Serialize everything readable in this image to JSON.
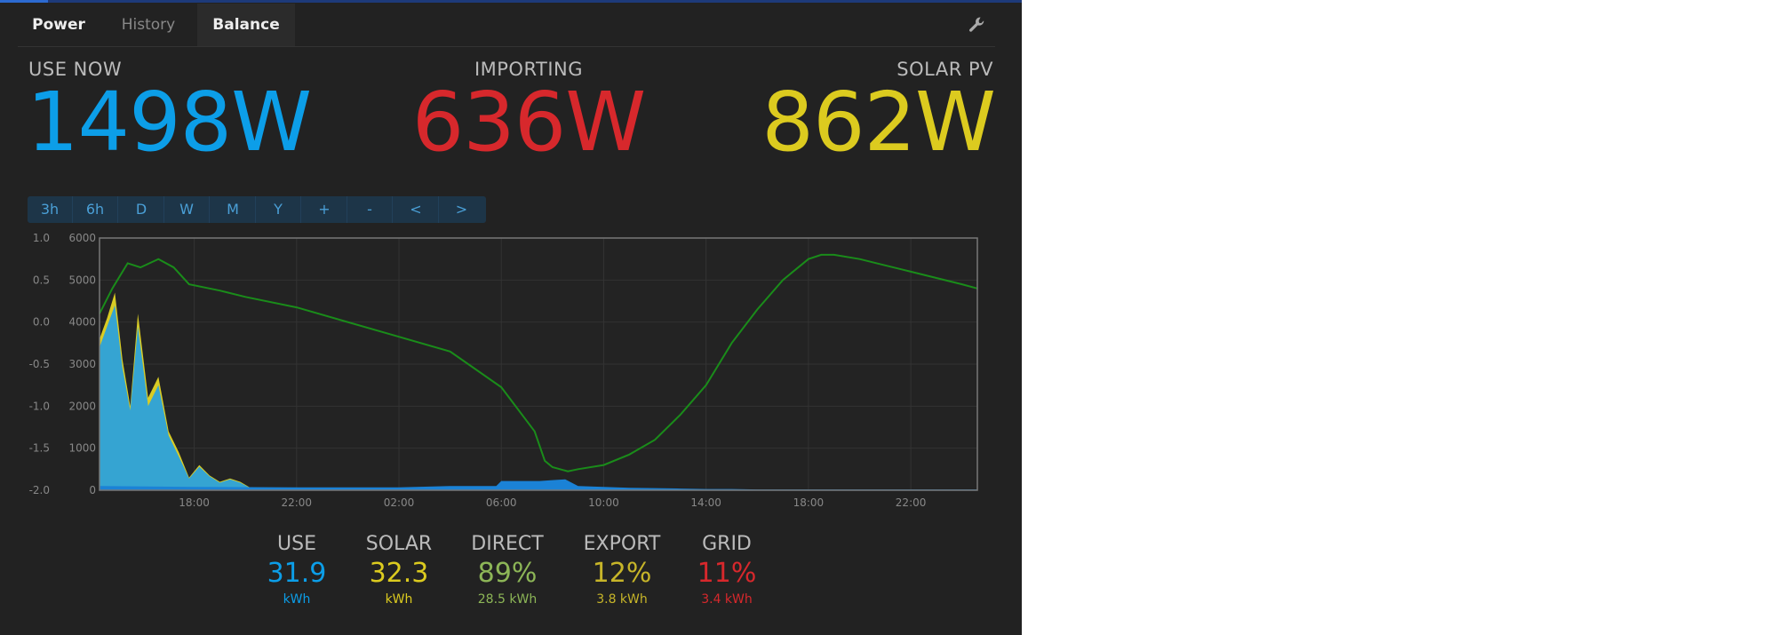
{
  "nav": {
    "tabs": [
      {
        "label": "Power"
      },
      {
        "label": "History"
      },
      {
        "label": "Balance"
      }
    ],
    "settings_icon": "wrench-icon"
  },
  "headline": {
    "use_now": {
      "label": "USE NOW",
      "value": "1498W"
    },
    "importing": {
      "label": "IMPORTING",
      "value": "636W"
    },
    "solar_pv": {
      "label": "SOLAR PV",
      "value": "862W"
    }
  },
  "time_buttons": [
    "3h",
    "6h",
    "D",
    "W",
    "M",
    "Y",
    "+",
    "-",
    "<",
    ">"
  ],
  "chart_data": {
    "type": "area",
    "x_ticks": [
      "18:00",
      "22:00",
      "02:00",
      "06:00",
      "10:00",
      "14:00",
      "18:00",
      "22:00"
    ],
    "y_left_ticks": [
      "1.0",
      "0.5",
      "0.0",
      "-0.5",
      "-1.0",
      "-1.5",
      "-2.0"
    ],
    "y_left_range": [
      -2.0,
      1.0
    ],
    "y_right_ticks": [
      "6000",
      "5000",
      "4000",
      "3000",
      "2000",
      "1000",
      "0"
    ],
    "y_right_range": [
      0,
      6000
    ],
    "x_range_hours": [
      14.3,
      48.6
    ],
    "grid": true,
    "series": [
      {
        "color": "#d9cc24",
        "x": [
          14.3,
          14.6,
          14.9,
          15.2,
          15.5,
          15.8,
          16.2,
          16.6,
          17.0,
          17.4,
          17.8,
          18.2,
          18.6,
          19.0,
          19.4,
          19.8,
          20.2,
          20.6,
          21.0,
          21.5,
          22,
          24,
          26,
          28,
          30,
          32,
          34,
          36,
          38,
          40,
          42,
          44,
          46,
          48,
          48.6
        ],
        "values": [
          3600,
          4100,
          4700,
          3100,
          2000,
          4200,
          2200,
          2700,
          1400,
          900,
          300,
          600,
          350,
          200,
          280,
          200,
          60,
          20,
          20,
          10,
          10,
          10,
          10,
          10,
          10,
          10,
          10,
          10,
          10,
          10,
          10,
          10,
          10,
          10,
          10
        ]
      },
      {
        "color": "#35a4d2",
        "x": [
          14.3,
          14.6,
          14.9,
          15.2,
          15.5,
          15.8,
          16.2,
          16.6,
          17.0,
          17.4,
          17.8,
          18.2,
          18.6,
          19.0,
          19.4,
          19.8,
          20.2,
          20.6,
          21.0,
          21.5,
          22,
          24,
          26,
          28,
          30,
          32,
          34,
          36,
          38,
          40,
          42,
          44,
          46,
          48,
          48.6
        ],
        "values": [
          3400,
          3900,
          4400,
          2900,
          1900,
          3900,
          2000,
          2500,
          1300,
          800,
          280,
          560,
          330,
          180,
          260,
          180,
          50,
          20,
          20,
          10,
          10,
          10,
          10,
          10,
          10,
          10,
          10,
          10,
          10,
          10,
          10,
          10,
          10,
          10,
          10
        ]
      },
      {
        "color": "#1b82d6",
        "x": [
          14.3,
          18,
          22,
          24,
          26,
          28,
          29.8,
          30,
          31,
          31.5,
          32,
          32.5,
          33,
          34,
          35,
          36,
          37,
          38,
          39,
          40,
          41,
          42,
          43,
          44,
          45,
          46,
          47,
          48,
          48.6
        ],
        "values": [
          100,
          80,
          70,
          70,
          70,
          100,
          100,
          220,
          220,
          220,
          240,
          260,
          100,
          80,
          60,
          50,
          40,
          30,
          30,
          20,
          20,
          20,
          20,
          20,
          20,
          20,
          20,
          20,
          20
        ]
      },
      {
        "color": "#1a8c1a",
        "x": [
          14.3,
          14.8,
          15.4,
          15.9,
          16.6,
          17.2,
          17.8,
          19.0,
          20.0,
          22.0,
          26.0,
          28.0,
          30.0,
          31.3,
          31.7,
          32.0,
          32.6,
          33.0,
          34.0,
          35.0,
          36.0,
          37.0,
          38.0,
          38.5,
          39.0,
          40.0,
          41.0,
          42.0,
          42.5,
          43.0,
          44.0,
          45.0,
          46.0,
          47.0,
          48.0,
          48.6
        ],
        "values": [
          4200,
          4800,
          5400,
          5300,
          5500,
          5300,
          4900,
          4750,
          4600,
          4350,
          3650,
          3300,
          2450,
          1400,
          700,
          550,
          450,
          500,
          600,
          850,
          1200,
          1800,
          2500,
          3000,
          3500,
          4300,
          5000,
          5500,
          5600,
          5600,
          5500,
          5350,
          5200,
          5050,
          4900,
          4800
        ]
      }
    ]
  },
  "stats": [
    {
      "label": "USE",
      "value": "31.9",
      "sub": "kWh",
      "color": "#0c9ee8"
    },
    {
      "label": "SOLAR",
      "value": "32.3",
      "sub": "kWh",
      "color": "#dccb1f"
    },
    {
      "label": "DIRECT",
      "value": "89%",
      "sub": "28.5 kWh",
      "color": "#8db657"
    },
    {
      "label": "EXPORT",
      "value": "12%",
      "sub": "3.8 kWh",
      "color": "#c7b529"
    },
    {
      "label": "GRID",
      "value": "11%",
      "sub": "3.4 kWh",
      "color": "#d7282c"
    }
  ]
}
